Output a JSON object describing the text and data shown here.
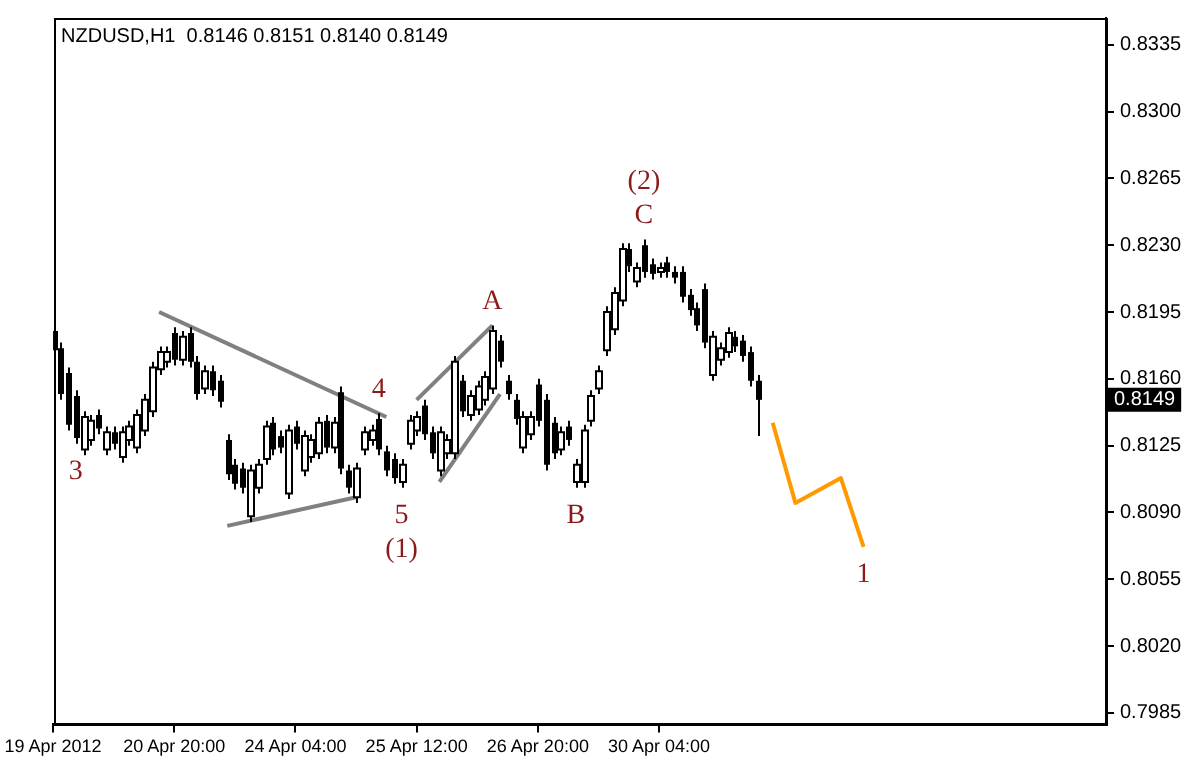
{
  "chart_data": {
    "type": "candlestick",
    "title": "NZDUSD,H1  0.8146 0.8151 0.8140 0.8149",
    "categories": [
      "19 Apr 2012",
      null,
      null,
      null,
      null,
      null,
      null,
      null,
      null,
      null,
      null,
      null,
      null,
      null,
      null,
      null,
      "20 Apr 20:00",
      null,
      null,
      null,
      null,
      null,
      null,
      null,
      null,
      null,
      null,
      null,
      null,
      null,
      null,
      null,
      "24 Apr 04:00",
      null,
      null,
      null,
      null,
      null,
      null,
      null,
      null,
      null,
      null,
      null,
      null,
      null,
      null,
      null,
      "25 Apr 12:00",
      null,
      null,
      null,
      null,
      null,
      null,
      null,
      null,
      null,
      null,
      null,
      null,
      null,
      null,
      null,
      "26 Apr 20:00",
      null,
      null,
      null,
      null,
      null,
      null,
      null,
      null,
      null,
      null,
      null,
      null,
      null,
      null,
      null,
      "30 Apr 04:00",
      null,
      null,
      null,
      null,
      null,
      null,
      null,
      null,
      null,
      null,
      null,
      null,
      null,
      null,
      null,
      null,
      null,
      null,
      null,
      null,
      null,
      null,
      null,
      null,
      null,
      null,
      null,
      null,
      null,
      null,
      null,
      null,
      null,
      null,
      null,
      null,
      null,
      null,
      null,
      null,
      null,
      null,
      null,
      null,
      null,
      null,
      null,
      null,
      null,
      null,
      null,
      null,
      null,
      null,
      null,
      null,
      null,
      null,
      null
    ],
    "ohlc": [
      [
        0.8185,
        0.8188,
        0.8172,
        0.8175
      ],
      [
        0.8176,
        0.8179,
        0.8149,
        0.8152
      ],
      [
        0.8163,
        0.8166,
        0.8133,
        0.8136
      ],
      [
        0.8151,
        0.8154,
        0.8126,
        0.8129
      ],
      [
        0.8123,
        0.8143,
        0.812,
        0.814
      ],
      [
        0.8128,
        0.8141,
        0.8125,
        0.8138
      ],
      [
        0.8141,
        0.8144,
        0.8131,
        0.8134
      ],
      [
        0.8123,
        0.8135,
        0.812,
        0.8132
      ],
      [
        0.8132,
        0.8135,
        0.8123,
        0.8126
      ],
      [
        0.8119,
        0.8135,
        0.8116,
        0.8132
      ],
      [
        0.8128,
        0.8138,
        0.8125,
        0.8135
      ],
      [
        0.8124,
        0.8144,
        0.8121,
        0.8141
      ],
      [
        0.8133,
        0.8152,
        0.813,
        0.8149
      ],
      [
        0.8143,
        0.8169,
        0.814,
        0.8166
      ],
      [
        0.8165,
        0.8177,
        0.8162,
        0.8174
      ],
      [
        0.8169,
        0.8177,
        0.8166,
        0.8174
      ],
      [
        0.8184,
        0.8187,
        0.8167,
        0.817
      ],
      [
        0.817,
        0.8185,
        0.8167,
        0.8182
      ],
      [
        0.8184,
        0.8187,
        0.8166,
        0.8169
      ],
      [
        0.8169,
        0.8172,
        0.8149,
        0.8152
      ],
      [
        0.8155,
        0.8167,
        0.8152,
        0.8164
      ],
      [
        0.8164,
        0.8167,
        0.8151,
        0.8154
      ],
      [
        0.8159,
        0.8162,
        0.8145,
        0.8148
      ],
      [
        0.8128,
        0.8131,
        0.8107,
        0.811
      ],
      [
        0.8115,
        0.8118,
        0.8102,
        0.8105
      ],
      [
        0.8113,
        0.8116,
        0.81,
        0.8103
      ],
      [
        0.8088,
        0.8115,
        0.8085,
        0.8112
      ],
      [
        0.8103,
        0.8118,
        0.81,
        0.8115
      ],
      [
        0.8118,
        0.8138,
        0.8115,
        0.8135
      ],
      [
        0.8137,
        0.814,
        0.812,
        0.8123
      ],
      [
        0.813,
        0.8133,
        0.8121,
        0.8124
      ],
      [
        0.81,
        0.8136,
        0.8097,
        0.8133
      ],
      [
        0.8135,
        0.8138,
        0.8123,
        0.8126
      ],
      [
        0.8112,
        0.8133,
        0.8109,
        0.813
      ],
      [
        0.8119,
        0.8131,
        0.8116,
        0.8128
      ],
      [
        0.8121,
        0.814,
        0.8118,
        0.8137
      ],
      [
        0.8138,
        0.8141,
        0.8121,
        0.8124
      ],
      [
        0.8124,
        0.814,
        0.8121,
        0.8137
      ],
      [
        0.8153,
        0.8156,
        0.811,
        0.8113
      ],
      [
        0.8112,
        0.8115,
        0.81,
        0.8103
      ],
      [
        0.8098,
        0.8116,
        0.8095,
        0.8113
      ],
      [
        0.8123,
        0.8135,
        0.812,
        0.8132
      ],
      [
        0.8128,
        0.8136,
        0.8125,
        0.8133
      ],
      [
        0.8139,
        0.8142,
        0.812,
        0.8123
      ],
      [
        0.8122,
        0.8125,
        0.8109,
        0.8112
      ],
      [
        0.8118,
        0.8121,
        0.8105,
        0.8108
      ],
      [
        0.8106,
        0.8118,
        0.8103,
        0.8115
      ],
      [
        0.8126,
        0.8141,
        0.8123,
        0.8138
      ],
      [
        0.8133,
        0.8143,
        0.813,
        0.814
      ],
      [
        0.8146,
        0.8149,
        0.8128,
        0.8131
      ],
      [
        0.8132,
        0.8135,
        0.8118,
        0.8121
      ],
      [
        0.8112,
        0.8135,
        0.8109,
        0.8132
      ],
      [
        0.8121,
        0.8131,
        0.8118,
        0.8128
      ],
      [
        0.8121,
        0.8172,
        0.8118,
        0.8169
      ],
      [
        0.8159,
        0.8162,
        0.814,
        0.8143
      ],
      [
        0.8141,
        0.8154,
        0.8138,
        0.8151
      ],
      [
        0.8144,
        0.8159,
        0.8141,
        0.8156
      ],
      [
        0.8149,
        0.8164,
        0.8146,
        0.8161
      ],
      [
        0.8155,
        0.8188,
        0.8152,
        0.8185
      ],
      [
        0.818,
        0.8183,
        0.8166,
        0.8169
      ],
      [
        0.8159,
        0.8162,
        0.8149,
        0.8152
      ],
      [
        0.8149,
        0.8152,
        0.8136,
        0.8139
      ],
      [
        0.8124,
        0.8143,
        0.8121,
        0.814
      ],
      [
        0.8131,
        0.8143,
        0.8128,
        0.814
      ],
      [
        0.8157,
        0.816,
        0.8135,
        0.8138
      ],
      [
        0.8149,
        0.8152,
        0.8112,
        0.8115
      ],
      [
        0.8137,
        0.814,
        0.8118,
        0.8121
      ],
      [
        0.8123,
        0.8135,
        0.812,
        0.8132
      ],
      [
        0.8135,
        0.8138,
        0.8125,
        0.8128
      ],
      [
        0.8106,
        0.8118,
        0.8103,
        0.8115
      ],
      [
        0.8106,
        0.8136,
        0.8103,
        0.8133
      ],
      [
        0.8138,
        0.8154,
        0.8135,
        0.8151
      ],
      [
        0.8155,
        0.8167,
        0.8152,
        0.8164
      ],
      [
        0.8175,
        0.8198,
        0.8172,
        0.8195
      ],
      [
        0.8186,
        0.8208,
        0.8183,
        0.8205
      ],
      [
        0.8201,
        0.8231,
        0.8198,
        0.8228
      ],
      [
        0.8228,
        0.8231,
        0.8216,
        0.8219
      ],
      [
        0.8211,
        0.8221,
        0.8208,
        0.8218
      ],
      [
        0.823,
        0.8233,
        0.8213,
        0.8216
      ],
      [
        0.822,
        0.8223,
        0.8212,
        0.8215
      ],
      [
        0.8216,
        0.8221,
        0.8213,
        0.8218
      ],
      [
        0.8221,
        0.8224,
        0.8213,
        0.8216
      ],
      [
        0.8216,
        0.8219,
        0.821,
        0.8213
      ],
      [
        0.8216,
        0.8219,
        0.82,
        0.8203
      ],
      [
        0.8204,
        0.8207,
        0.8193,
        0.8196
      ],
      [
        0.8197,
        0.82,
        0.8185,
        0.8188
      ],
      [
        0.8207,
        0.821,
        0.8176,
        0.8179
      ],
      [
        0.8162,
        0.8185,
        0.8159,
        0.8182
      ],
      [
        0.817,
        0.8179,
        0.8167,
        0.8176
      ],
      [
        0.8174,
        0.8187,
        0.8171,
        0.8184
      ],
      [
        0.8182,
        0.8185,
        0.8174,
        0.8177
      ],
      [
        0.818,
        0.8183,
        0.8169,
        0.8172
      ],
      [
        0.8174,
        0.8177,
        0.8156,
        0.8159
      ],
      [
        0.8159,
        0.8162,
        0.813,
        0.8149
      ],
      null,
      null,
      null,
      null,
      null,
      null,
      null,
      null,
      null,
      null,
      null,
      null,
      null,
      null,
      null,
      null,
      null,
      null,
      null,
      null,
      null,
      null,
      null,
      null,
      null,
      null,
      null,
      null,
      null,
      null,
      null,
      null,
      null,
      null,
      null,
      null,
      null,
      null,
      null,
      null,
      null,
      null,
      null,
      null,
      null,
      null
    ],
    "value_labels": [
      null,
      null,
      null,
      "3",
      null,
      null,
      null,
      null,
      null,
      null,
      null,
      null,
      null,
      null,
      null,
      null,
      null,
      null,
      null,
      null,
      null,
      null,
      null,
      null,
      null,
      null,
      null,
      null,
      null,
      null,
      null,
      null,
      null,
      null,
      null,
      null,
      null,
      null,
      null,
      null,
      null,
      null,
      null,
      "4",
      null,
      null,
      "5\n(1)",
      null,
      null,
      null,
      null,
      null,
      null,
      null,
      null,
      null,
      null,
      null,
      "A",
      null,
      null,
      null,
      null,
      null,
      null,
      null,
      null,
      null,
      null,
      "B",
      null,
      null,
      null,
      null,
      null,
      null,
      null,
      null,
      "(2)\nC",
      null,
      null,
      null,
      null,
      null,
      null,
      null,
      null,
      null,
      null,
      null,
      null,
      null,
      null,
      null,
      null,
      null,
      null,
      null,
      null,
      null,
      null,
      null,
      null,
      null,
      null,
      null,
      null,
      null,
      null,
      null,
      null,
      null,
      null,
      null,
      null,
      null,
      null,
      null,
      null,
      null,
      null,
      null,
      null,
      null,
      null,
      null,
      null,
      null,
      null,
      null,
      null,
      null,
      null,
      null,
      null,
      null,
      null,
      null,
      null,
      null
    ],
    "series": [
      {
        "type": "line",
        "color": "#808080",
        "values": [
          null,
          null,
          null,
          null,
          null,
          null,
          null,
          null,
          null,
          null,
          null,
          null,
          null,
          null,
          0.8195,
          null,
          null,
          null,
          null,
          null,
          null,
          null,
          null,
          null,
          null,
          null,
          null,
          null,
          null,
          null,
          null,
          null,
          null,
          null,
          null,
          null,
          null,
          null,
          null,
          null,
          null,
          null,
          null,
          null,
          0.814,
          null,
          null,
          null,
          null,
          null,
          null,
          null,
          null,
          null,
          null,
          null,
          null,
          null,
          null,
          null,
          null,
          null,
          null,
          null,
          null,
          null,
          null,
          null,
          null,
          null,
          null,
          null,
          null,
          null,
          null,
          null,
          null,
          null,
          null,
          null,
          null,
          null,
          null,
          null,
          null,
          null,
          null,
          null,
          null,
          null,
          null,
          null,
          null,
          null,
          null,
          null,
          null,
          null,
          null,
          null,
          null,
          null,
          null,
          null,
          null,
          null,
          null,
          null,
          null,
          null,
          null,
          null,
          null,
          null,
          null,
          null,
          null,
          null,
          null,
          null,
          null,
          null,
          null,
          null,
          null,
          null,
          null,
          null,
          null,
          null,
          null,
          null,
          null,
          null,
          null,
          null,
          null,
          null,
          null,
          null
        ]
      },
      {
        "type": "line",
        "color": "#808080",
        "values": [
          null,
          null,
          null,
          null,
          null,
          null,
          null,
          null,
          null,
          null,
          null,
          null,
          null,
          null,
          null,
          null,
          null,
          null,
          null,
          null,
          null,
          null,
          null,
          0.8083,
          null,
          null,
          null,
          null,
          null,
          null,
          null,
          null,
          null,
          null,
          null,
          null,
          null,
          null,
          null,
          null,
          0.8098,
          null,
          null,
          null,
          null,
          null,
          null,
          null,
          null,
          null,
          null,
          null,
          null,
          null,
          null,
          null,
          null,
          null,
          null,
          null,
          null,
          null,
          null,
          null,
          null,
          null,
          null,
          null,
          null,
          null,
          null,
          null,
          null,
          null,
          null,
          null,
          null,
          null,
          null,
          null,
          null,
          null,
          null,
          null,
          null,
          null,
          null,
          null,
          null,
          null,
          null,
          null,
          null,
          null,
          null,
          null,
          null,
          null,
          null,
          null,
          null,
          null,
          null,
          null,
          null,
          null,
          null,
          null,
          null,
          null,
          null,
          null,
          null,
          null,
          null,
          null,
          null,
          null,
          null,
          null,
          null,
          null,
          null,
          null,
          null,
          null,
          null,
          null,
          null,
          null,
          null,
          null,
          null,
          null,
          null,
          null,
          null,
          null,
          null,
          null
        ]
      },
      {
        "type": "line",
        "color": "#808080",
        "values": [
          null,
          null,
          null,
          null,
          null,
          null,
          null,
          null,
          null,
          null,
          null,
          null,
          null,
          null,
          null,
          null,
          null,
          null,
          null,
          null,
          null,
          null,
          null,
          null,
          null,
          null,
          null,
          null,
          null,
          null,
          null,
          null,
          null,
          null,
          null,
          null,
          null,
          null,
          null,
          null,
          null,
          null,
          null,
          null,
          null,
          null,
          null,
          null,
          0.8149,
          null,
          null,
          null,
          null,
          null,
          null,
          null,
          null,
          null,
          0.8188,
          null,
          null,
          null,
          null,
          null,
          null,
          null,
          null,
          null,
          null,
          null,
          null,
          null,
          null,
          null,
          null,
          null,
          null,
          null,
          null,
          null,
          null,
          null,
          null,
          null,
          null,
          null,
          null,
          null,
          null,
          null,
          null,
          null,
          null,
          null,
          null,
          null,
          null,
          null,
          null,
          null,
          null,
          null,
          null,
          null,
          null,
          null,
          null,
          null,
          null,
          null,
          null,
          null,
          null,
          null,
          null,
          null,
          null,
          null,
          null,
          null,
          null,
          null,
          null,
          null,
          null,
          null,
          null,
          null,
          null,
          null,
          null,
          null,
          null,
          null,
          null,
          null,
          null,
          null,
          null,
          null
        ]
      },
      {
        "type": "line",
        "color": "#808080",
        "values": [
          null,
          null,
          null,
          null,
          null,
          null,
          null,
          null,
          null,
          null,
          null,
          null,
          null,
          null,
          null,
          null,
          null,
          null,
          null,
          null,
          null,
          null,
          null,
          null,
          null,
          null,
          null,
          null,
          null,
          null,
          null,
          null,
          null,
          null,
          null,
          null,
          null,
          null,
          null,
          null,
          null,
          null,
          null,
          null,
          null,
          null,
          null,
          null,
          null,
          null,
          null,
          0.8106,
          null,
          null,
          null,
          null,
          null,
          null,
          null,
          0.8152,
          null,
          null,
          null,
          null,
          null,
          null,
          null,
          null,
          null,
          null,
          null,
          null,
          null,
          null,
          null,
          null,
          null,
          null,
          null,
          null,
          null,
          null,
          null,
          null,
          null,
          null,
          null,
          null,
          null,
          null,
          null,
          null,
          null,
          null,
          null,
          null,
          null,
          null,
          null,
          null,
          null,
          null,
          null,
          null,
          null,
          null,
          null,
          null,
          null,
          null,
          null,
          null,
          null,
          null,
          null,
          null,
          null,
          null,
          null,
          null,
          null,
          null,
          null,
          null,
          null,
          null,
          null,
          null,
          null,
          null,
          null,
          null,
          null,
          null,
          null,
          null,
          null,
          null,
          null,
          null
        ]
      },
      {
        "type": "line",
        "color": "#ff9900",
        "values": [
          null,
          null,
          null,
          null,
          null,
          null,
          null,
          null,
          null,
          null,
          null,
          null,
          null,
          null,
          null,
          null,
          null,
          null,
          null,
          null,
          null,
          null,
          null,
          null,
          null,
          null,
          null,
          null,
          null,
          null,
          null,
          null,
          null,
          null,
          null,
          null,
          null,
          null,
          null,
          null,
          null,
          null,
          null,
          null,
          null,
          null,
          null,
          null,
          null,
          null,
          null,
          null,
          null,
          null,
          null,
          null,
          null,
          null,
          null,
          null,
          null,
          null,
          null,
          null,
          null,
          null,
          null,
          null,
          null,
          null,
          null,
          null,
          null,
          null,
          null,
          null,
          null,
          null,
          null,
          null,
          null,
          null,
          null,
          null,
          null,
          null,
          null,
          null,
          null,
          null,
          null,
          null,
          null,
          null,
          null,
          0.8137,
          null,
          null,
          0.8095,
          null,
          null,
          null,
          null,
          null,
          0.8108,
          null,
          null,
          0.8072,
          null,
          null,
          null,
          null,
          null,
          null,
          null,
          null,
          null,
          null,
          null,
          null,
          null,
          null,
          null,
          null,
          null,
          null,
          null,
          null,
          null,
          null,
          null,
          null,
          null,
          null,
          null,
          null,
          null,
          null,
          null,
          null
        ],
        "value_labels": [
          null,
          null,
          null,
          null,
          null,
          null,
          null,
          null,
          null,
          null,
          null,
          null,
          null,
          null,
          null,
          null,
          null,
          null,
          null,
          null,
          null,
          null,
          null,
          null,
          null,
          null,
          null,
          null,
          null,
          null,
          null,
          null,
          null,
          null,
          null,
          null,
          null,
          null,
          null,
          null,
          null,
          null,
          null,
          null,
          null,
          null,
          null,
          null,
          null,
          null,
          null,
          null,
          null,
          null,
          null,
          null,
          null,
          null,
          null,
          null,
          null,
          null,
          null,
          null,
          null,
          null,
          null,
          null,
          null,
          null,
          null,
          null,
          null,
          null,
          null,
          null,
          null,
          null,
          null,
          null,
          null,
          null,
          null,
          null,
          null,
          null,
          null,
          null,
          null,
          null,
          null,
          null,
          null,
          null,
          null,
          null,
          null,
          null,
          null,
          null,
          null,
          null,
          null,
          null,
          null,
          null,
          null,
          "1",
          null,
          null,
          null,
          null,
          null,
          null,
          null,
          null,
          null,
          null,
          null,
          null,
          null,
          null,
          null,
          null,
          null,
          null,
          null,
          null,
          null,
          null,
          null,
          null,
          null,
          null,
          null,
          null,
          null,
          null,
          null,
          null
        ]
      }
    ],
    "ylim": [
      0.7979,
      0.8349
    ],
    "yticks": [
      {
        "value": 0.7985,
        "label": "0.7985"
      },
      {
        "value": 0.802,
        "label": "0.8020"
      },
      {
        "value": 0.8055,
        "label": "0.8055"
      },
      {
        "value": 0.809,
        "label": "0.8090"
      },
      {
        "value": 0.8125,
        "label": "0.8125"
      },
      {
        "value": 0.816,
        "label": "0.8160"
      },
      {
        "value": 0.8195,
        "label": "0.8195"
      },
      {
        "value": 0.823,
        "label": "0.8230"
      },
      {
        "value": 0.8265,
        "label": "0.8265"
      },
      {
        "value": 0.83,
        "label": "0.8300"
      },
      {
        "value": 0.8335,
        "label": "0.8335"
      }
    ],
    "annotations": [
      "0.8149"
    ],
    "legend": false
  }
}
